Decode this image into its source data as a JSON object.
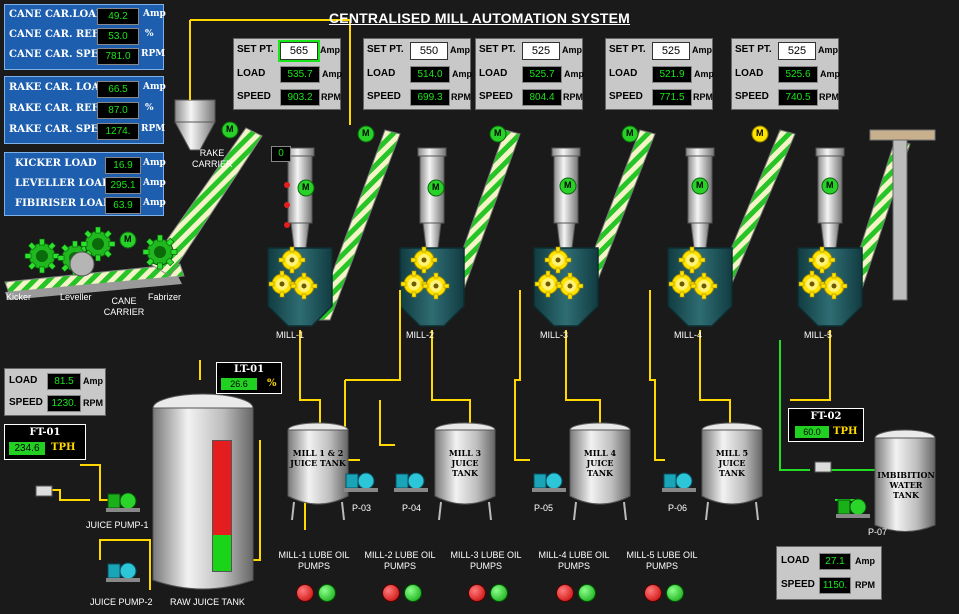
{
  "title": "CENTRALISED MILL AUTOMATION SYSTEM",
  "panel_cane": [
    {
      "label": "CANE CAR.LOAD",
      "value": "49.2",
      "unit": "Amp"
    },
    {
      "label": "CANE CAR. REF.",
      "value": "53.0",
      "unit": "%"
    },
    {
      "label": "CANE CAR. SPEED",
      "value": "781.0",
      "unit": "RPM"
    }
  ],
  "panel_rake": [
    {
      "label": "RAKE CAR. LOAD",
      "value": "66.5",
      "unit": "Amp"
    },
    {
      "label": "RAKE CAR. REF",
      "value": "87.0",
      "unit": "%"
    },
    {
      "label": "RAKE CAR. SPEED",
      "value": "1274.",
      "unit": "RPM"
    }
  ],
  "panel_kicker": [
    {
      "label": "KICKER LOAD",
      "value": "16.9",
      "unit": "Amp"
    },
    {
      "label": "LEVELLER LOAD",
      "value": "295.1",
      "unit": "Amp"
    },
    {
      "label": "FIBIRISER LOAD",
      "value": "63.9",
      "unit": "Amp"
    }
  ],
  "mill_labels": {
    "set": "SET PT.",
    "load": "LOAD",
    "speed": "SPEED",
    "amp": "Amp",
    "rpm": "RPM"
  },
  "mills": [
    {
      "name": "MILL-1",
      "set": "565",
      "load": "535.7",
      "speed": "903.2"
    },
    {
      "name": "MILL-2",
      "set": "550",
      "load": "514.0",
      "speed": "699.3"
    },
    {
      "name": "MILL-3",
      "set": "525",
      "load": "525.7",
      "speed": "804.4"
    },
    {
      "name": "MILL-4",
      "set": "525",
      "load": "521.9",
      "speed": "771.5"
    },
    {
      "name": "MILL-5",
      "set": "525",
      "load": "525.6",
      "speed": "740.5"
    }
  ],
  "mill1_indicator": "0",
  "motor_label": "M",
  "equipment": {
    "kicker": "Kicker",
    "leveller": "Leveller",
    "cane_carrier": "CANE CARRIER",
    "fabrizer": "Fabrizer",
    "rake_carrier": "RAKE CARRIER"
  },
  "pump_panel_left": {
    "load_label": "LOAD",
    "load": "81.5",
    "load_unit": "Amp",
    "speed_label": "SPEED",
    "speed": "1230.",
    "speed_unit": "RPM"
  },
  "ft01": {
    "tag": "FT-01",
    "value": "234.6",
    "unit": "TPH"
  },
  "lt01": {
    "tag": "LT-01",
    "value": "26.6",
    "unit": "%"
  },
  "ft02": {
    "tag": "FT-02",
    "value": "60.0",
    "unit": "TPH"
  },
  "level_raw_juice_tank": 0.28,
  "tanks": [
    "MILL 1 & 2 JUICE TANK",
    "MILL 3 JUICE TANK",
    "MILL 4 JUICE TANK",
    "MILL 5 JUICE TANK"
  ],
  "pumps": [
    "P-03",
    "P-04",
    "P-05",
    "P-06",
    "P-07"
  ],
  "juice_pump_1": "JUICE PUMP-1",
  "juice_pump_2": "JUICE PUMP-2",
  "raw_juice_tank": "RAW JUICE TANK",
  "imbibition_tank": "IMBIBITION WATER TANK",
  "pump_panel_right": {
    "load_label": "LOAD",
    "load": "27.1",
    "load_unit": "Amp",
    "speed_label": "SPEED",
    "speed": "1150.",
    "speed_unit": "RPM"
  },
  "lube_pumps": [
    {
      "name": "MILL-1 LUBE OIL PUMPS"
    },
    {
      "name": "MILL-2 LUBE OIL PUMPS"
    },
    {
      "name": "MILL-3 LUBE OIL PUMPS"
    },
    {
      "name": "MILL-4 LUBE OIL PUMPS"
    },
    {
      "name": "MILL-5 LUBE OIL PUMPS"
    }
  ],
  "colors": {
    "background": "#1a1a1a",
    "panel_blue": "#1d5fae",
    "value_green": "#19e619",
    "pipe_yellow": "#ffd800",
    "pipe_green": "#22dd22",
    "mill_teal": "#1b4f55"
  }
}
